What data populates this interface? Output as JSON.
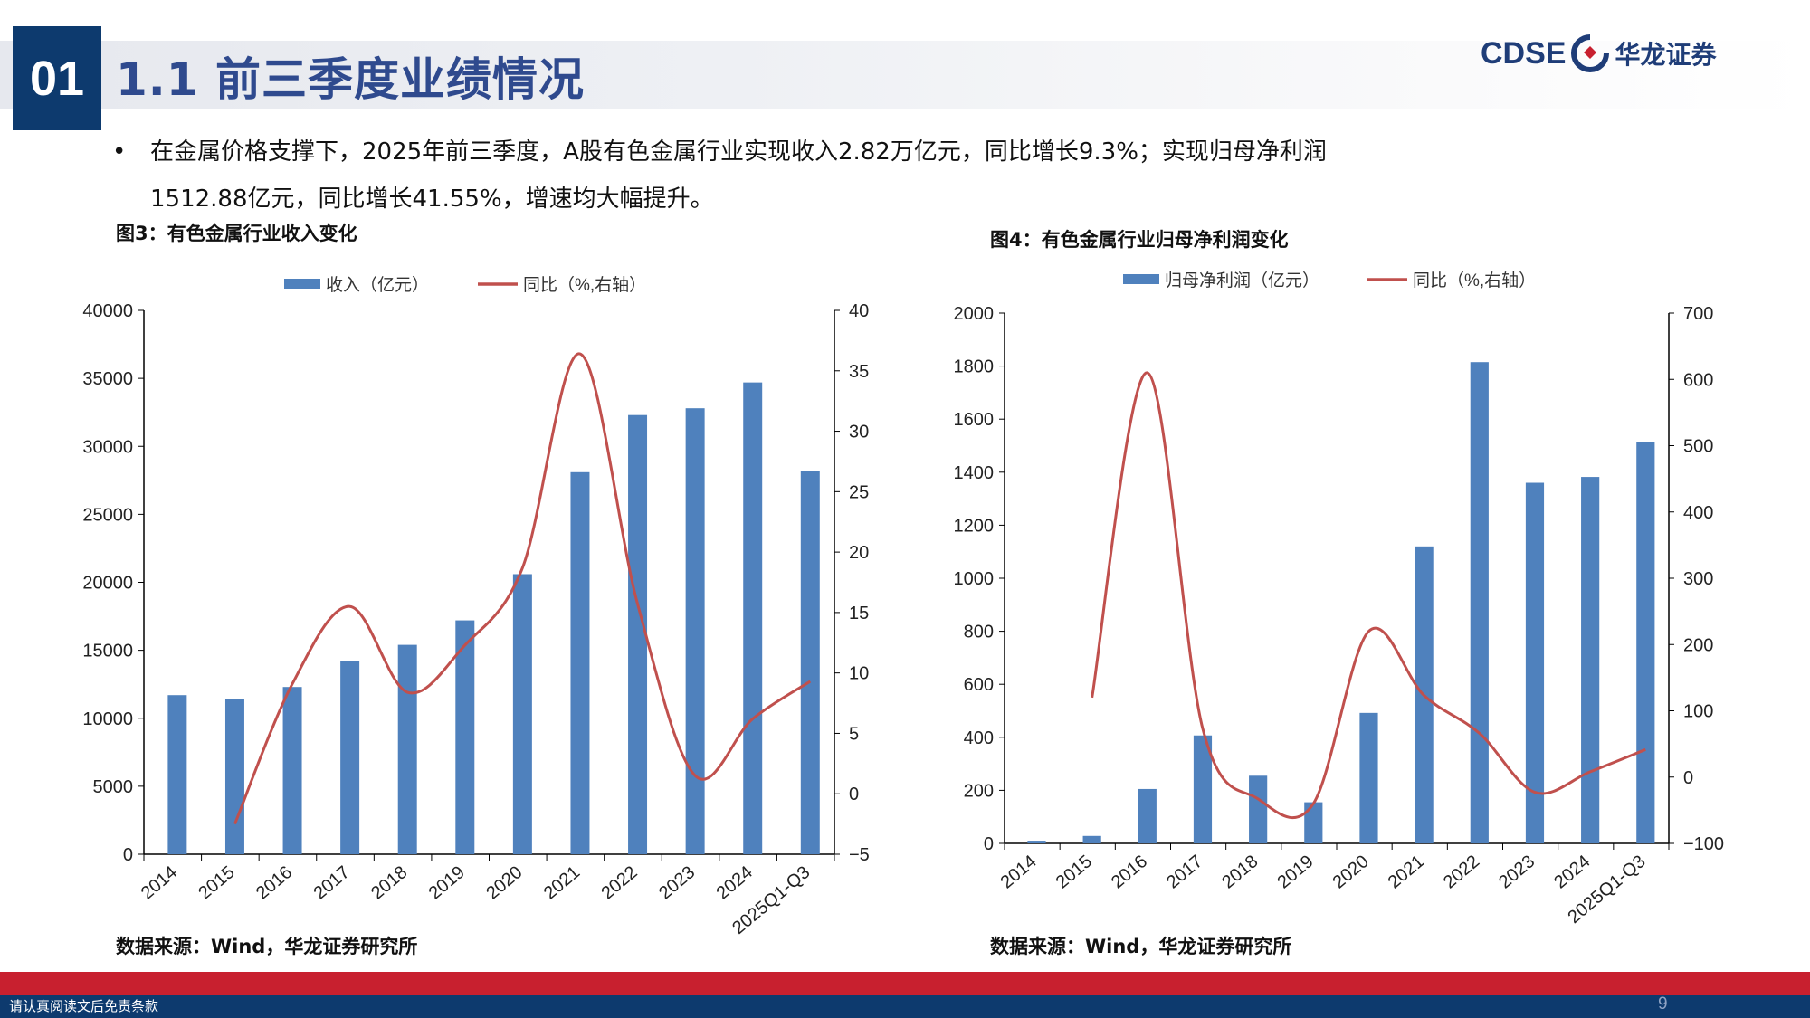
{
  "header": {
    "section_number": "01",
    "title": "1.1 前三季度业绩情况",
    "logo_en": "CDSE",
    "logo_cn": "华龙证券"
  },
  "bullet": {
    "line1": "在金属价格支撑下，2025年前三季度，A股有色金属行业实现收入2.82万亿元，同比增长9.3%；实现归母净利润",
    "line2": "1512.88亿元，同比增长41.55%，增速均大幅提升。"
  },
  "footer": {
    "disclaimer": "请认真阅读文后免责条款",
    "page_number": "9"
  },
  "colors": {
    "bar": "#4f81bd",
    "line": "#c0504d",
    "brand_blue": "#0d3a6e",
    "brand_red": "#c8202f"
  },
  "chart_data": [
    {
      "type": "bar",
      "title": "图3：有色金属行业收入变化",
      "source": "数据来源：Wind，华龙证券研究所",
      "categories": [
        "2014",
        "2015",
        "2016",
        "2017",
        "2018",
        "2019",
        "2020",
        "2021",
        "2022",
        "2023",
        "2024",
        "2025Q1-Q3"
      ],
      "series": [
        {
          "name": "收入（亿元）",
          "type": "bar",
          "axis": "left",
          "values": [
            11700,
            11400,
            12300,
            14200,
            15400,
            17200,
            20600,
            28100,
            32300,
            32800,
            34700,
            28200
          ]
        },
        {
          "name": "同比（%,右轴）",
          "type": "line",
          "axis": "right",
          "values": [
            null,
            -2.5,
            9.1,
            15.5,
            8.4,
            12.3,
            18.7,
            36.4,
            15.7,
            1.5,
            6.2,
            9.3
          ]
        }
      ],
      "ylim": [
        0,
        40000
      ],
      "yticks": [
        "0",
        "5000",
        "10000",
        "15000",
        "20000",
        "25000",
        "30000",
        "35000",
        "40000"
      ],
      "y2lim": [
        -5,
        40
      ],
      "y2ticks": [
        "−5",
        "0",
        "5",
        "10",
        "15",
        "20",
        "25",
        "30",
        "35",
        "40"
      ],
      "legend": "top",
      "grid": false
    },
    {
      "type": "bar",
      "title": "图4：有色金属行业归母净利润变化",
      "source": "数据来源：Wind，华龙证券研究所",
      "categories": [
        "2014",
        "2015",
        "2016",
        "2017",
        "2018",
        "2019",
        "2020",
        "2021",
        "2022",
        "2023",
        "2024",
        "2025Q1-Q3"
      ],
      "series": [
        {
          "name": "归母净利润（亿元）",
          "type": "bar",
          "axis": "left",
          "values": [
            10,
            28,
            205,
            407,
            255,
            155,
            492,
            1120,
            1815,
            1360,
            1382,
            1512.88
          ]
        },
        {
          "name": "同比（%,右轴）",
          "type": "line",
          "axis": "right",
          "values": [
            null,
            120,
            610,
            73,
            -33,
            -40,
            220,
            123,
            66,
            -23,
            8,
            41.55
          ]
        }
      ],
      "ylim": [
        0,
        2000
      ],
      "yticks": [
        "0",
        "200",
        "400",
        "600",
        "800",
        "1000",
        "1200",
        "1400",
        "1600",
        "1800",
        "2000"
      ],
      "y2lim": [
        -100,
        700
      ],
      "y2ticks": [
        "−100",
        "0",
        "100",
        "200",
        "300",
        "400",
        "500",
        "600",
        "700"
      ],
      "legend": "top",
      "grid": false
    }
  ]
}
